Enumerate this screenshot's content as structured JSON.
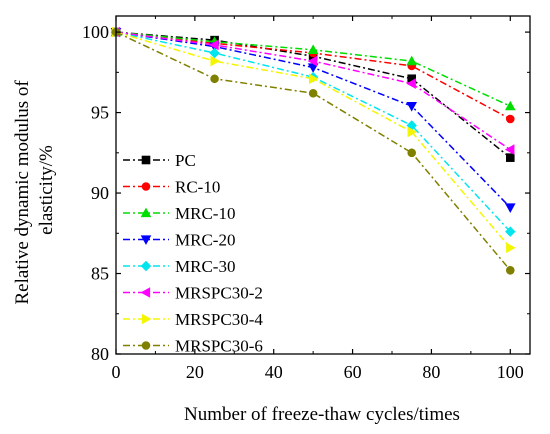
{
  "chart_data": {
    "type": "line",
    "title": "",
    "xlabel": "Number of freeze-thaw cycles/times",
    "ylabel": "Relative dynamic modulus of elasticity/%",
    "ylabel_lines": [
      "Relative dynamic modulus of",
      "elasticity/%"
    ],
    "xlim": [
      0,
      105
    ],
    "ylim": [
      80,
      101
    ],
    "xticks": [
      0,
      20,
      40,
      60,
      80,
      100
    ],
    "yticks": [
      80,
      85,
      90,
      95,
      100
    ],
    "grid": false,
    "legend_position": "lower-left",
    "x": [
      0,
      25,
      50,
      75,
      100
    ],
    "series": [
      {
        "name": "PC",
        "color": "#000000",
        "marker": "square",
        "values": [
          100,
          99.5,
          98.5,
          97.1,
          92.2
        ]
      },
      {
        "name": "RC-10",
        "color": "#ff0000",
        "marker": "circle",
        "values": [
          100,
          99.3,
          98.7,
          97.9,
          94.6
        ]
      },
      {
        "name": "MRC-10",
        "color": "#00dd00",
        "marker": "triangle-up",
        "values": [
          100,
          99.4,
          98.9,
          98.2,
          95.4
        ]
      },
      {
        "name": "MRC-20",
        "color": "#0000ff",
        "marker": "triangle-down",
        "values": [
          100,
          99.1,
          97.8,
          95.4,
          89.1
        ]
      },
      {
        "name": "MRC-30",
        "color": "#00e5ee",
        "marker": "diamond",
        "values": [
          100,
          98.7,
          97.2,
          94.2,
          87.6
        ]
      },
      {
        "name": "MRSPC30-2",
        "color": "#ff00ff",
        "marker": "triangle-left",
        "values": [
          100,
          99.2,
          98.2,
          96.8,
          92.7
        ]
      },
      {
        "name": "MRSPC30-4",
        "color": "#f5f500",
        "marker": "triangle-right",
        "values": [
          100,
          98.2,
          97.1,
          93.8,
          86.6
        ]
      },
      {
        "name": "MRSPC30-6",
        "color": "#808000",
        "marker": "circle",
        "values": [
          100,
          97.1,
          96.2,
          92.5,
          85.2
        ]
      }
    ]
  }
}
